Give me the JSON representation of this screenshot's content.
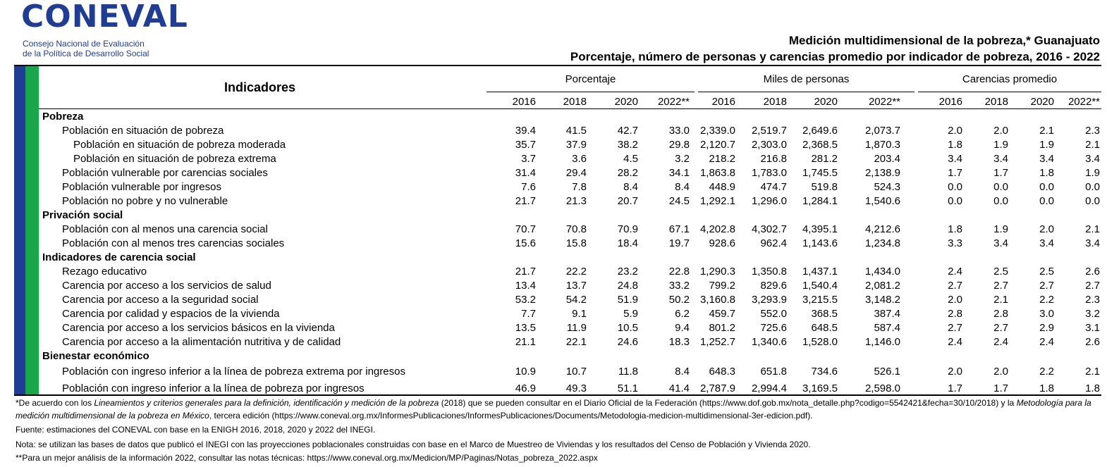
{
  "header": {
    "logo": "CONEVAL",
    "org": [
      "Consejo Nacional de Evaluación",
      "de la Política de Desarrollo Social"
    ],
    "title": "Medición multidimensional de la pobreza,* Guanajuato",
    "subtitle": "Porcentaje, número de personas y carencias promedio por indicador de pobreza, 2016 - 2022"
  },
  "table": {
    "indicator_header": "Indicadores",
    "groups": [
      {
        "label": "Porcentaje",
        "years": [
          "2016",
          "2018",
          "2020",
          "2022**"
        ]
      },
      {
        "label": "Miles de personas",
        "years": [
          "2016",
          "2018",
          "2020",
          "2022**"
        ]
      },
      {
        "label": "Carencias promedio",
        "years": [
          "2016",
          "2018",
          "2020",
          "2022**"
        ]
      }
    ],
    "sections": [
      {
        "title": "Pobreza",
        "rows": [
          {
            "label": "Población en situación de pobreza",
            "values": [
              "39.4",
              "41.5",
              "42.7",
              "33.0",
              "2,339.0",
              "2,519.7",
              "2,649.6",
              "2,073.7",
              "2.0",
              "2.0",
              "2.1",
              "2.3"
            ],
            "subrows": [
              {
                "label": "Población en situación de pobreza moderada",
                "values": [
                  "35.7",
                  "37.9",
                  "38.2",
                  "29.8",
                  "2,120.7",
                  "2,303.0",
                  "2,368.5",
                  "1,870.3",
                  "1.8",
                  "1.9",
                  "1.9",
                  "2.1"
                ]
              },
              {
                "label": "Población en situación de pobreza extrema",
                "values": [
                  "3.7",
                  "3.6",
                  "4.5",
                  "3.2",
                  "218.2",
                  "216.8",
                  "281.2",
                  "203.4",
                  "3.4",
                  "3.4",
                  "3.4",
                  "3.4"
                ]
              }
            ]
          },
          {
            "label": "Población vulnerable por carencias sociales",
            "values": [
              "31.4",
              "29.4",
              "28.2",
              "34.1",
              "1,863.8",
              "1,783.0",
              "1,745.5",
              "2,138.9",
              "1.7",
              "1.7",
              "1.8",
              "1.9"
            ]
          },
          {
            "label": "Población vulnerable por ingresos",
            "values": [
              "7.6",
              "7.8",
              "8.4",
              "8.4",
              "448.9",
              "474.7",
              "519.8",
              "524.3",
              "0.0",
              "0.0",
              "0.0",
              "0.0"
            ]
          },
          {
            "label": "Población no pobre y no vulnerable",
            "values": [
              "21.7",
              "21.3",
              "20.7",
              "24.5",
              "1,292.1",
              "1,296.0",
              "1,284.1",
              "1,540.6",
              "0.0",
              "0.0",
              "0.0",
              "0.0"
            ]
          }
        ]
      },
      {
        "title": "Privación social",
        "rows": [
          {
            "label": "Población con al menos una carencia social",
            "values": [
              "70.7",
              "70.8",
              "70.9",
              "67.1",
              "4,202.8",
              "4,302.7",
              "4,395.1",
              "4,212.6",
              "1.8",
              "1.9",
              "2.0",
              "2.1"
            ]
          },
          {
            "label": "Población con al menos tres carencias sociales",
            "values": [
              "15.6",
              "15.8",
              "18.4",
              "19.7",
              "928.6",
              "962.4",
              "1,143.6",
              "1,234.8",
              "3.3",
              "3.4",
              "3.4",
              "3.4"
            ]
          }
        ]
      },
      {
        "title": "Indicadores de carencia social",
        "rows": [
          {
            "label": "Rezago educativo",
            "values": [
              "21.7",
              "22.2",
              "23.2",
              "22.8",
              "1,290.3",
              "1,350.8",
              "1,437.1",
              "1,434.0",
              "2.4",
              "2.5",
              "2.5",
              "2.6"
            ]
          },
          {
            "label": "Carencia por acceso a los servicios de salud",
            "values": [
              "13.4",
              "13.7",
              "24.8",
              "33.2",
              "799.2",
              "829.6",
              "1,540.4",
              "2,081.2",
              "2.7",
              "2.7",
              "2.7",
              "2.7"
            ]
          },
          {
            "label": "Carencia por acceso a la seguridad social",
            "values": [
              "53.2",
              "54.2",
              "51.9",
              "50.2",
              "3,160.8",
              "3,293.9",
              "3,215.5",
              "3,148.2",
              "2.0",
              "2.1",
              "2.2",
              "2.3"
            ]
          },
          {
            "label": "Carencia por calidad y espacios de la vivienda",
            "values": [
              "7.7",
              "9.1",
              "5.9",
              "6.2",
              "459.7",
              "552.0",
              "368.5",
              "387.4",
              "2.8",
              "2.8",
              "3.0",
              "3.2"
            ]
          },
          {
            "label": "Carencia por acceso a los servicios básicos en la vivienda",
            "values": [
              "13.5",
              "11.9",
              "10.5",
              "9.4",
              "801.2",
              "725.6",
              "648.5",
              "587.4",
              "2.7",
              "2.7",
              "2.9",
              "3.1"
            ]
          },
          {
            "label": "Carencia por acceso a la alimentación nutritiva y de calidad",
            "values": [
              "21.1",
              "22.1",
              "24.6",
              "18.3",
              "1,252.7",
              "1,340.6",
              "1,528.0",
              "1,146.0",
              "2.4",
              "2.4",
              "2.4",
              "2.6"
            ]
          }
        ]
      },
      {
        "title": "Bienestar económico",
        "rows": [
          {
            "label": "Población con ingreso inferior a la línea de pobreza extrema por ingresos",
            "values": [
              "10.9",
              "10.7",
              "11.8",
              "8.4",
              "648.3",
              "651.8",
              "734.6",
              "526.1",
              "2.0",
              "2.0",
              "2.2",
              "2.1"
            ]
          },
          {
            "label": "Población con ingreso inferior a la línea de pobreza por ingresos",
            "values": [
              "46.9",
              "49.3",
              "51.1",
              "41.4",
              "2,787.9",
              "2,994.4",
              "3,169.5",
              "2,598.0",
              "1.7",
              "1.7",
              "1.8",
              "1.8"
            ]
          }
        ]
      }
    ]
  },
  "notes": [
    {
      "parts": [
        "*De acuerdo con los ",
        "Lineamientos y criterios generales para la definición, identificación y medición de la pobreza",
        " (2018) que se pueden consultar en el Diario Oficial de la Federación (https://www.dof.gob.mx/nota_detalle.php?codigo=5542421&fecha=30/10/2018) y la ",
        "Metodología para la medición multidimensional de la pobreza en México",
        ", tercera edición (https://www.coneval.org.mx/InformesPublicaciones/InformesPublicaciones/Documents/Metodologia-medicion-multidimensional-3er-edicion.pdf)."
      ]
    },
    {
      "parts": [
        "Fuente: estimaciones del CONEVAL con base en la ENIGH 2016, 2018, 2020 y 2022 del INEGI."
      ]
    },
    {
      "parts": [
        "Nota: se utilizan las bases de datos que publicó el INEGI con las proyecciones poblacionales construidas con base en el Marco de Muestreo de Viviendas y los resultados del Censo de Población y Vivienda 2020."
      ]
    },
    {
      "parts": [
        "**Para un mejor análisis de la información 2022, consultar las notas técnicas: https://www.coneval.org.mx/Medicion/MP/Paginas/Notas_pobreza_2022.aspx"
      ]
    }
  ]
}
